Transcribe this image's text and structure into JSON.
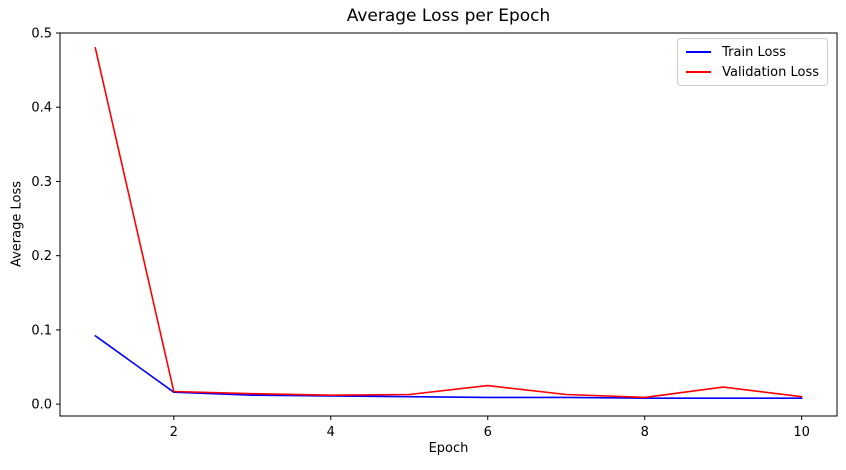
{
  "chart_data": {
    "type": "line",
    "title": "Average Loss per Epoch",
    "xlabel": "Epoch",
    "ylabel": "Average Loss",
    "x": [
      1,
      2,
      3,
      4,
      5,
      6,
      7,
      8,
      9,
      10
    ],
    "series": [
      {
        "name": "Train Loss",
        "color": "#0000ff",
        "values": [
          0.092,
          0.016,
          0.012,
          0.011,
          0.01,
          0.009,
          0.009,
          0.008,
          0.008,
          0.008
        ]
      },
      {
        "name": "Validation Loss",
        "color": "#ff0000",
        "values": [
          0.48,
          0.017,
          0.014,
          0.012,
          0.013,
          0.025,
          0.013,
          0.009,
          0.023,
          0.01
        ]
      }
    ],
    "xticks": [
      2,
      4,
      6,
      8,
      10
    ],
    "ytick_labels": [
      "0.0",
      "0.1",
      "0.2",
      "0.3",
      "0.4",
      "0.5"
    ],
    "ytick_values": [
      0.0,
      0.1,
      0.2,
      0.3,
      0.4,
      0.5
    ],
    "xlim": [
      0.55,
      10.45
    ],
    "ylim": [
      -0.016,
      0.5
    ],
    "grid": false,
    "legend_position": "upper right",
    "axis_color": "#000000"
  }
}
